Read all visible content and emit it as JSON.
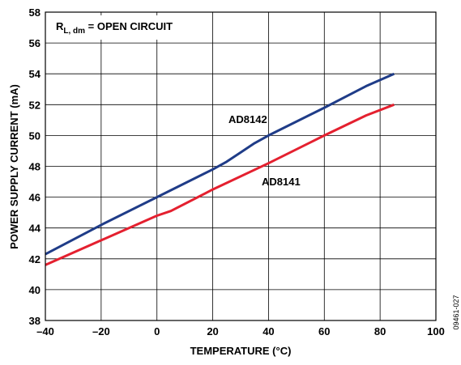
{
  "chart_data": {
    "type": "line",
    "xlabel": "TEMPERATURE (°C)",
    "ylabel": "POWER SUPPLY CURRENT (mA)",
    "xlim": [
      -40,
      100
    ],
    "ylim": [
      38,
      58
    ],
    "x_ticks": [
      -40,
      -20,
      0,
      20,
      40,
      60,
      80,
      100
    ],
    "x_tick_labels": [
      "–40",
      "–20",
      "0",
      "20",
      "40",
      "60",
      "80",
      "100"
    ],
    "y_ticks": [
      38,
      40,
      42,
      44,
      46,
      48,
      50,
      52,
      54,
      56,
      58
    ],
    "y_tick_labels": [
      "38",
      "40",
      "42",
      "44",
      "46",
      "48",
      "50",
      "52",
      "54",
      "56",
      "58"
    ],
    "grid": true,
    "annotation": {
      "main": "R",
      "sub": "L, dm",
      "rest": " = OPEN CIRCUIT"
    },
    "figure_id": "09461-027",
    "series": [
      {
        "name": "AD8142",
        "color": "#1f3c88",
        "x": [
          -40,
          -20,
          0,
          20,
          25,
          30,
          35,
          40,
          60,
          75,
          85
        ],
        "y": [
          42.3,
          44.2,
          46.0,
          47.8,
          48.3,
          48.9,
          49.5,
          50.0,
          51.8,
          53.2,
          54.0
        ]
      },
      {
        "name": "AD8141",
        "color": "#e4202f",
        "x": [
          -40,
          -20,
          0,
          5,
          20,
          40,
          60,
          75,
          85
        ],
        "y": [
          41.6,
          43.2,
          44.8,
          45.1,
          46.5,
          48.2,
          50.0,
          51.3,
          52.0
        ]
      }
    ]
  }
}
